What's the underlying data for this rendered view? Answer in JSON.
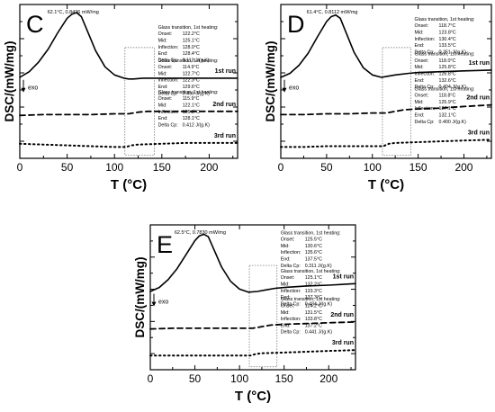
{
  "chart_data": [
    {
      "type": "line",
      "panel_label": "C",
      "xlabel": "T (°C)",
      "ylabel": "DSC/(mW/mg)",
      "xlim": [
        0,
        230
      ],
      "xticks": [
        0,
        50,
        100,
        150,
        200
      ],
      "yticks_labeled": false,
      "grid": false,
      "exo_label": "exo",
      "peak_annotation": "62.1°C, 0.8436 mW/mg",
      "series": [
        {
          "name": "1st run",
          "style": "solid",
          "x": [
            0,
            10,
            20,
            30,
            40,
            50,
            55,
            60,
            65,
            70,
            80,
            90,
            100,
            110,
            115,
            120,
            130,
            140,
            150,
            175,
            200,
            230
          ],
          "y": [
            0.05,
            0.12,
            0.24,
            0.4,
            0.6,
            0.78,
            0.83,
            0.85,
            0.8,
            0.66,
            0.38,
            0.18,
            0.08,
            0.04,
            0.03,
            0.03,
            0.04,
            0.04,
            0.04,
            0.04,
            0.04,
            0.04
          ]
        },
        {
          "name": "2nd run",
          "style": "dashed",
          "x": [
            0,
            25,
            50,
            75,
            100,
            115,
            125,
            135,
            150,
            175,
            200,
            230
          ],
          "y": [
            -0.42,
            -0.41,
            -0.41,
            -0.41,
            -0.4,
            -0.4,
            -0.38,
            -0.37,
            -0.37,
            -0.37,
            -0.37,
            -0.37
          ]
        },
        {
          "name": "3rd run",
          "style": "dotted",
          "x": [
            0,
            25,
            50,
            75,
            100,
            112,
            118,
            125,
            150,
            175,
            200,
            230
          ],
          "y": [
            -0.77,
            -0.78,
            -0.79,
            -0.8,
            -0.81,
            -0.81,
            -0.79,
            -0.78,
            -0.77,
            -0.76,
            -0.76,
            -0.76
          ]
        }
      ],
      "annotations": [
        {
          "run": "1st run",
          "lines": [
            "Glass transition, 1st heating:",
            "Onset:",
            "122.2°C",
            "Mid:",
            "125.1°C",
            "Inflection:",
            "128.0°C",
            "End:",
            "128.4°C",
            "Delta Cp:",
            "0.113 J/(g.K)"
          ]
        },
        {
          "run": "2nd run",
          "lines": [
            "Glass transition, 1st heating:",
            "Onset:",
            "114.9°C",
            "Mid:",
            "122.7°C",
            "Inflection:",
            "122.3°C",
            "End:",
            "129.6°C",
            "Delta Cp:",
            "0.499 J/(g.K)"
          ]
        },
        {
          "run": "3rd run",
          "lines": [
            "Glass transition, 1st heating:",
            "Onset:",
            "115.9°C",
            "Mid:",
            "122.1°C",
            "Inflection:",
            "125.8°C",
            "End:",
            "128.1°C",
            "Delta Cp:",
            "0.412 J/(g.K)"
          ]
        }
      ]
    },
    {
      "type": "line",
      "panel_label": "D",
      "xlabel": "T (°C)",
      "ylabel": "DSC/(mW/mg)",
      "xlim": [
        0,
        230
      ],
      "xticks": [
        0,
        50,
        100,
        150,
        200
      ],
      "yticks_labeled": false,
      "grid": false,
      "exo_label": "exo",
      "peak_annotation": "61.4°C, 0.8112 mW/mg",
      "series": [
        {
          "name": "1st run",
          "style": "solid",
          "x": [
            0,
            10,
            20,
            30,
            40,
            50,
            55,
            60,
            65,
            70,
            80,
            90,
            100,
            110,
            115,
            125,
            140,
            150,
            175,
            200,
            230
          ],
          "y": [
            0.05,
            0.1,
            0.2,
            0.35,
            0.55,
            0.74,
            0.8,
            0.82,
            0.78,
            0.64,
            0.36,
            0.17,
            0.08,
            0.05,
            0.06,
            0.08,
            0.1,
            0.11,
            0.12,
            0.13,
            0.14
          ]
        },
        {
          "name": "2nd run",
          "style": "dashed",
          "x": [
            0,
            25,
            50,
            75,
            100,
            115,
            125,
            135,
            150,
            175,
            200,
            230
          ],
          "y": [
            -0.41,
            -0.41,
            -0.4,
            -0.4,
            -0.39,
            -0.39,
            -0.37,
            -0.35,
            -0.34,
            -0.33,
            -0.31,
            -0.29
          ]
        },
        {
          "name": "3rd run",
          "style": "dotted",
          "x": [
            0,
            25,
            50,
            75,
            100,
            112,
            118,
            125,
            150,
            175,
            200,
            230
          ],
          "y": [
            -0.81,
            -0.81,
            -0.8,
            -0.8,
            -0.8,
            -0.8,
            -0.77,
            -0.76,
            -0.75,
            -0.74,
            -0.73,
            -0.72
          ]
        }
      ],
      "annotations": [
        {
          "run": "1st run",
          "lines": [
            "Glass transition, 1st heating:",
            "Onset:",
            "118.7°C",
            "Mid:",
            "123.8°C",
            "Inflection:",
            "130.4°C",
            "End:",
            "133.5°C",
            "Delta Cp:",
            "0.351 J/(g.K)"
          ]
        },
        {
          "run": "2nd run",
          "lines": [
            "Glass transition, 1st heating:",
            "Onset:",
            "118.0°C",
            "Mid:",
            "125.8°C",
            "Inflection:",
            "126.8°C",
            "End:",
            "132.6°C",
            "Delta Cp:",
            "0.404 J/(g.K)"
          ]
        },
        {
          "run": "3rd run",
          "lines": [
            "Glass transition, 1st heating:",
            "Onset:",
            "118.8°C",
            "Mid:",
            "125.9°C",
            "Inflection:",
            "127.1°C",
            "End:",
            "132.1°C",
            "Delta Cp:",
            "0.400 J/(g.K)"
          ]
        }
      ]
    },
    {
      "type": "line",
      "panel_label": "E",
      "xlabel": "T (°C)",
      "ylabel": "DSC/(mW/mg)",
      "xlim": [
        0,
        230
      ],
      "xticks": [
        0,
        50,
        100,
        150,
        200
      ],
      "yticks_labeled": false,
      "grid": false,
      "exo_label": "exo",
      "peak_annotation": "62.5°C, 0.7830 mW/mg",
      "series": [
        {
          "name": "1st run",
          "style": "solid",
          "x": [
            0,
            10,
            20,
            30,
            40,
            50,
            55,
            60,
            65,
            70,
            80,
            90,
            100,
            110,
            120,
            130,
            140,
            150,
            175,
            200,
            230
          ],
          "y": [
            0.05,
            0.1,
            0.2,
            0.34,
            0.52,
            0.7,
            0.76,
            0.78,
            0.75,
            0.62,
            0.36,
            0.18,
            0.08,
            0.04,
            0.05,
            0.07,
            0.09,
            0.1,
            0.12,
            0.13,
            0.15
          ]
        },
        {
          "name": "2nd run",
          "style": "dashed",
          "x": [
            0,
            25,
            50,
            75,
            100,
            115,
            125,
            135,
            150,
            175,
            200,
            230
          ],
          "y": [
            -0.43,
            -0.42,
            -0.42,
            -0.42,
            -0.42,
            -0.42,
            -0.4,
            -0.38,
            -0.37,
            -0.36,
            -0.35,
            -0.34
          ]
        },
        {
          "name": "3rd run",
          "style": "dotted",
          "x": [
            0,
            25,
            50,
            75,
            100,
            112,
            118,
            125,
            150,
            175,
            200,
            230
          ],
          "y": [
            -0.77,
            -0.77,
            -0.77,
            -0.77,
            -0.77,
            -0.77,
            -0.75,
            -0.74,
            -0.73,
            -0.72,
            -0.71,
            -0.7
          ]
        }
      ],
      "annotations": [
        {
          "run": "1st run",
          "lines": [
            "Glass transition, 1st heating:",
            "Onset:",
            "125.5°C",
            "Mid:",
            "130.6°C",
            "Inflection:",
            "135.6°C",
            "End:",
            "137.5°C",
            "Delta Cp:",
            "0.311 J/(g.K)"
          ]
        },
        {
          "run": "2nd run",
          "lines": [
            "Glass transition, 1st heating:",
            "Onset:",
            "125.1°C",
            "Mid:",
            "132.2°C",
            "Inflection:",
            "133.3°C",
            "End:",
            "137.3°C",
            "Delta Cp:",
            "0.434 J/(g.K)"
          ]
        },
        {
          "run": "3rd run",
          "lines": [
            "Glass transition, 1st heating:",
            "Onset:",
            "124.2°C",
            "Mid:",
            "131.5°C",
            "Inflection:",
            "133.8°C",
            "End:",
            "137.2°C",
            "Delta Cp:",
            "0.441 J/(g.K)"
          ]
        }
      ]
    }
  ]
}
